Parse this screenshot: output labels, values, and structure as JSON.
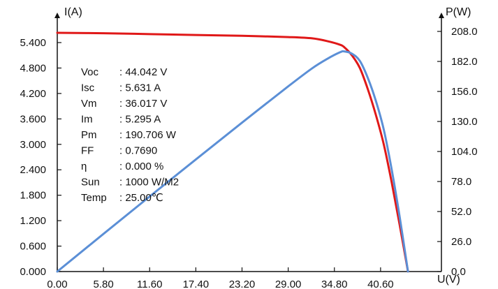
{
  "chart_data": {
    "type": "line",
    "title": "",
    "xlabel": "U(V)",
    "ylabel": "I(A)",
    "y2label": "P(W)",
    "xlim": [
      0,
      46.4
    ],
    "ylim": [
      0,
      6.0
    ],
    "y2lim": [
      0,
      220
    ],
    "x_ticks": [
      "0.00",
      "5.80",
      "11.60",
      "17.40",
      "23.20",
      "29.00",
      "34.80",
      "40.60"
    ],
    "y_ticks": [
      "0.000",
      "0.600",
      "1.200",
      "1.800",
      "2.400",
      "3.000",
      "3.600",
      "4.200",
      "4.800",
      "5.400"
    ],
    "y2_ticks": [
      "0.0",
      "26.0",
      "52.0",
      "78.0",
      "104.0",
      "130.0",
      "156.0",
      "182.0",
      "208.0"
    ],
    "grid": false,
    "series": [
      {
        "axis": "left",
        "color": "#e01818",
        "x": [
          0,
          5.8,
          11.6,
          17.4,
          23.2,
          29.0,
          32.0,
          34.0,
          35.5,
          36.017,
          37.0,
          38.0,
          39.0,
          40.0,
          41.0,
          42.0,
          43.0,
          44.042
        ],
        "y": [
          5.631,
          5.62,
          5.6,
          5.58,
          5.56,
          5.53,
          5.5,
          5.43,
          5.35,
          5.295,
          5.1,
          4.8,
          4.3,
          3.7,
          3.0,
          2.1,
          1.1,
          0
        ]
      },
      {
        "axis": "right",
        "color": "#5b8fd6",
        "x": [
          0,
          5.8,
          11.6,
          17.4,
          23.2,
          29.0,
          32.0,
          34.0,
          35.5,
          36.017,
          37.0,
          38.0,
          39.0,
          40.0,
          41.0,
          42.0,
          43.0,
          44.042
        ],
        "y": [
          0,
          32.6,
          65.0,
          97.1,
          129.0,
          160.4,
          176.0,
          184.6,
          189.9,
          190.706,
          188.7,
          182.4,
          167.7,
          148.0,
          123.0,
          88.2,
          47.3,
          0
        ]
      }
    ],
    "annotations": [
      {
        "label": "Voc",
        "value": ": 44.042  V"
      },
      {
        "label": "Isc",
        "value": ": 5.631  A"
      },
      {
        "label": "Vm",
        "value": ": 36.017  V"
      },
      {
        "label": "Im",
        "value": ": 5.295  A"
      },
      {
        "label": "Pm",
        "value": ": 190.706  W"
      },
      {
        "label": "FF",
        "value": ": 0.7690"
      },
      {
        "label": "η",
        "value": ": 0.000  %"
      },
      {
        "label": "Sun",
        "value": ": 1000  W/M2"
      },
      {
        "label": "Temp",
        "value": ": 25.00℃"
      }
    ]
  }
}
